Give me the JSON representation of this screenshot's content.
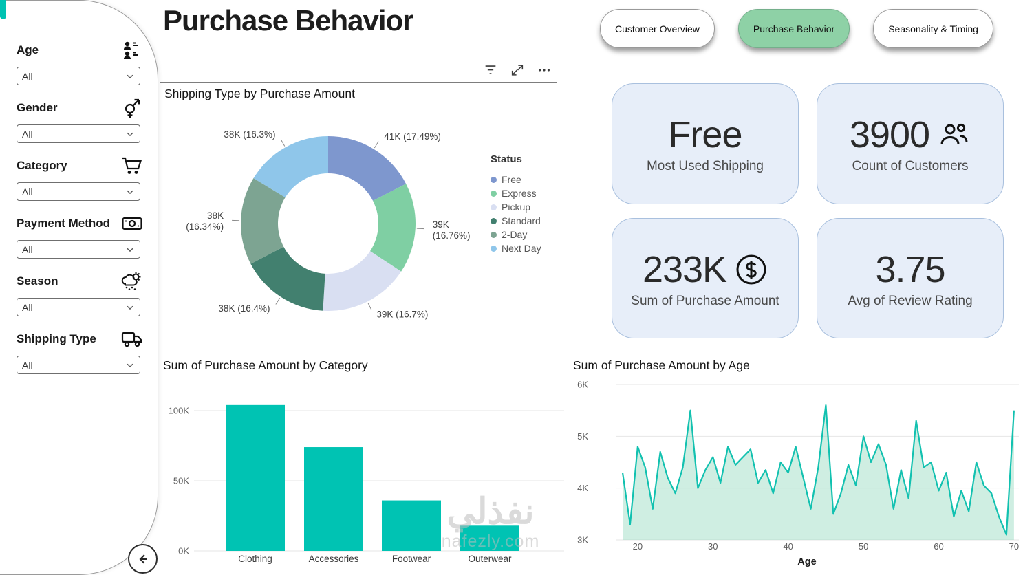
{
  "page": {
    "title": "Purchase Behavior"
  },
  "nav": [
    {
      "label": "Customer Overview",
      "active": false
    },
    {
      "label": "Purchase Behavior",
      "active": true
    },
    {
      "label": "Seasonality & Timing",
      "active": false
    }
  ],
  "sidebar": {
    "back_icon": "back-icon",
    "dropdown_chevron": "chevron-down-icon",
    "filters": [
      {
        "label": "Age",
        "value": "All",
        "icon": "people-icon"
      },
      {
        "label": "Gender",
        "value": "All",
        "icon": "gender-icon"
      },
      {
        "label": "Category",
        "value": "All",
        "icon": "cart-icon"
      },
      {
        "label": "Payment Method",
        "value": "All",
        "icon": "payment-icon"
      },
      {
        "label": "Season",
        "value": "All",
        "icon": "season-icon"
      },
      {
        "label": "Shipping Type",
        "value": "All",
        "icon": "truck-icon"
      }
    ]
  },
  "toolbar": {
    "icons": [
      "filter-icon",
      "expand-icon",
      "more-icon"
    ]
  },
  "kpis": [
    {
      "value": "Free",
      "label": "Most Used Shipping",
      "icon": ""
    },
    {
      "value": "3900",
      "label": "Count of Customers",
      "icon": "people-group-icon"
    },
    {
      "value": "233K",
      "label": "Sum of Purchase Amount",
      "icon": "dollar-icon"
    },
    {
      "value": "3.75",
      "label": "Avg of Review Rating",
      "icon": ""
    }
  ],
  "chart_data": [
    {
      "type": "pie",
      "donut": true,
      "title": "Shipping Type by Purchase Amount",
      "legend_title": "Status",
      "legend_position": "right",
      "labels": [
        "Free",
        "Express",
        "Pickup",
        "Standard",
        "2-Day",
        "Next Day"
      ],
      "values_k": [
        41,
        39,
        39,
        38,
        38,
        38
      ],
      "percents": [
        17.49,
        16.76,
        16.7,
        16.4,
        16.34,
        16.3
      ],
      "display_labels": [
        [
          "41K (17.49%)"
        ],
        [
          "39K",
          "(16.76%)"
        ],
        [
          "39K (16.7%)"
        ],
        [
          "38K (16.4%)"
        ],
        [
          "38K",
          "(16.34%)"
        ],
        [
          "38K (16.3%)"
        ]
      ],
      "colors": [
        "#7e97ce",
        "#7fcfa3",
        "#d9dff2",
        "#42806f",
        "#7da492",
        "#8fc6ea"
      ]
    },
    {
      "type": "bar",
      "title": "Sum of Purchase Amount by Category",
      "categories": [
        "Clothing",
        "Accessories",
        "Footwear",
        "Outerwear"
      ],
      "values_k": [
        104,
        74,
        36,
        18
      ],
      "yticks": [
        {
          "v": 0,
          "label": "0K"
        },
        {
          "v": 50,
          "label": "50K"
        },
        {
          "v": 100,
          "label": "100K"
        }
      ],
      "ylim_k": [
        0,
        110
      ],
      "grid": true,
      "bar_color": "#00c3b3"
    },
    {
      "type": "area",
      "title": "Sum of Purchase Amount by Age",
      "xlabel": "Age",
      "age_start": 18,
      "age_end": 70,
      "xticks": [
        20,
        30,
        40,
        50,
        60,
        70
      ],
      "yticks": [
        {
          "v": 3,
          "label": "3K"
        },
        {
          "v": 4,
          "label": "4K"
        },
        {
          "v": 5,
          "label": "5K"
        },
        {
          "v": 6,
          "label": "6K"
        }
      ],
      "ylim_k": [
        3,
        6
      ],
      "grid": true,
      "line_color": "#12c1b0",
      "fill_color": "rgba(118,205,172,0.35)",
      "values_k": [
        4.3,
        3.3,
        4.8,
        4.4,
        3.6,
        4.7,
        4.2,
        3.9,
        4.4,
        5.5,
        4.0,
        4.35,
        4.6,
        4.1,
        4.8,
        4.45,
        4.6,
        4.75,
        4.1,
        4.35,
        3.9,
        4.5,
        4.3,
        4.8,
        4.2,
        3.6,
        4.4,
        5.6,
        3.5,
        3.9,
        4.45,
        4.05,
        5.0,
        4.5,
        4.85,
        4.45,
        3.6,
        4.35,
        3.8,
        5.3,
        4.4,
        4.5,
        3.95,
        4.3,
        3.45,
        3.95,
        3.55,
        4.5,
        4.05,
        3.9,
        3.45,
        3.1,
        5.5
      ]
    }
  ],
  "watermark": {
    "line1": "نفذلي",
    "line2": "nafezly.com"
  }
}
